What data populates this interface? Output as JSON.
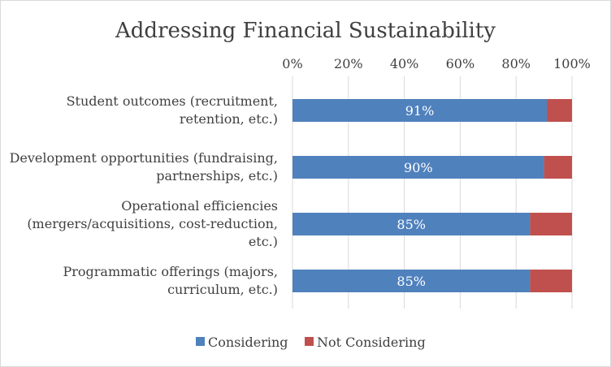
{
  "chart_data": {
    "type": "bar",
    "orientation": "horizontal",
    "stacked": true,
    "title": "Addressing Financial Sustainability",
    "xlabel": "",
    "ylabel": "",
    "xlim": [
      0,
      100
    ],
    "x_ticks": [
      "0%",
      "20%",
      "40%",
      "60%",
      "80%",
      "100%"
    ],
    "x_axis_position": "top",
    "grid": true,
    "legend": "bottom",
    "categories": [
      [
        "Student outcomes (recruitment,",
        "retention, etc.)"
      ],
      [
        "Development opportunities (fundraising,",
        "partnerships, etc.)"
      ],
      [
        "Operational efficiencies",
        "(mergers/acquisitions, cost-reduction,",
        "etc.)"
      ],
      [
        "Programmatic offerings (majors,",
        "curriculum, etc.)"
      ]
    ],
    "series": [
      {
        "name": "Considering",
        "color": "#4f81bd",
        "values": [
          91,
          90,
          85,
          85
        ],
        "labels": [
          "91%",
          "90%",
          "85%",
          "85%"
        ]
      },
      {
        "name": "Not Considering",
        "color": "#c0504d",
        "values": [
          9,
          10,
          15,
          15
        ]
      }
    ]
  }
}
